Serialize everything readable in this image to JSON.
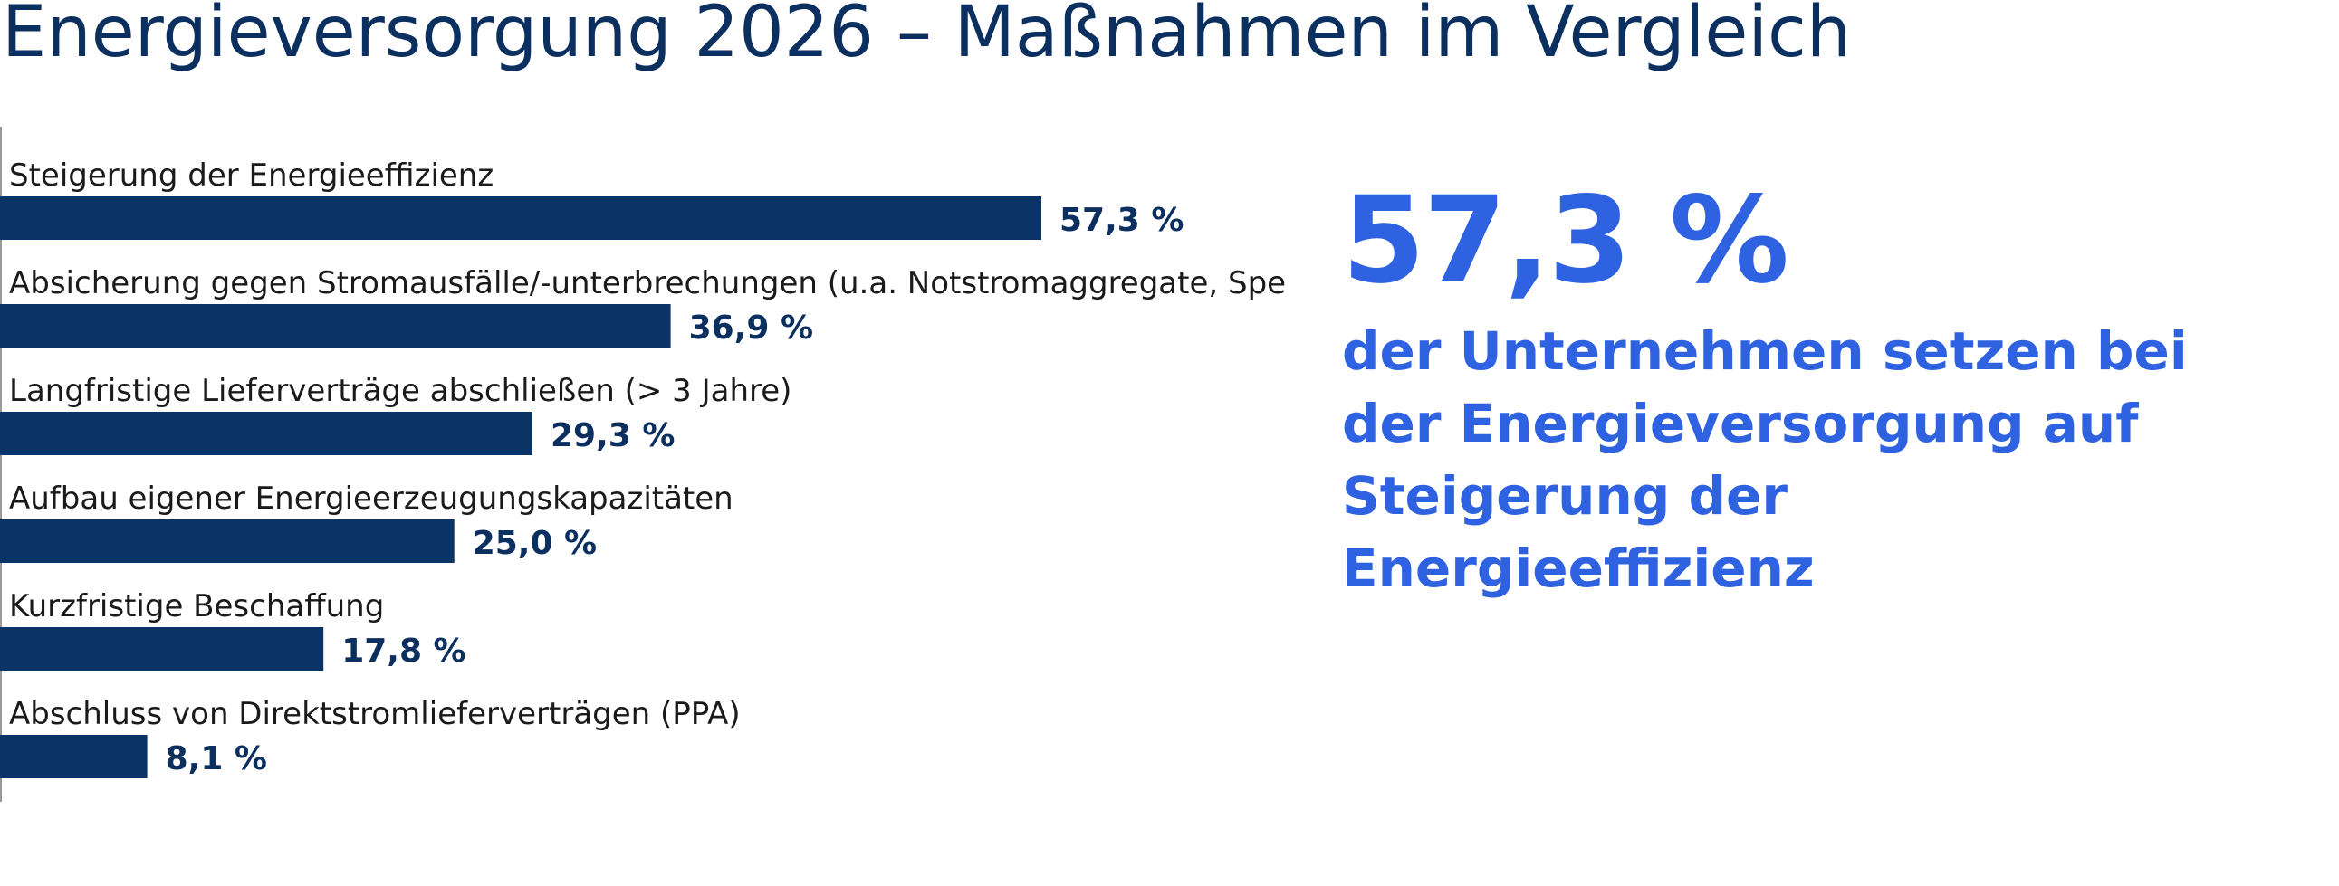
{
  "title": "Energieversorgung 2026 – Maßnahmen im Vergleich",
  "highlight": {
    "value": "57,3 %",
    "text": "der Unternehmen setzen bei der Energieversorgung auf Steigerung der Energieeffizienz"
  },
  "colors": {
    "title": "#0b2f5e",
    "bar": "#0b3466",
    "value_label": "#0b2f5e",
    "highlight": "#2e62e0",
    "category_label": "#1a1a1a"
  },
  "chart_data": {
    "type": "bar",
    "orientation": "horizontal",
    "categories": [
      "Steigerung der Energieeffizienz",
      "Absicherung gegen Stromausfälle/-unterbrechungen (u.a. Notstromaggregate, Speicher)",
      "Langfristige Lieferverträge abschließen (> 3 Jahre)",
      "Aufbau eigener Energieerzeugungskapazitäten",
      "Kurzfristige Beschaffung",
      "Abschluss von Direktstromlieferverträgen (PPA)"
    ],
    "values": [
      57.3,
      36.9,
      29.3,
      25.0,
      17.8,
      8.1
    ],
    "value_labels": [
      "57,3 %",
      "36,9 %",
      "29,3 %",
      "25,0 %",
      "17,8 %",
      "8,1 %"
    ],
    "unit": "%",
    "xlim": [
      0,
      100
    ],
    "grid": false,
    "legend": "none"
  }
}
